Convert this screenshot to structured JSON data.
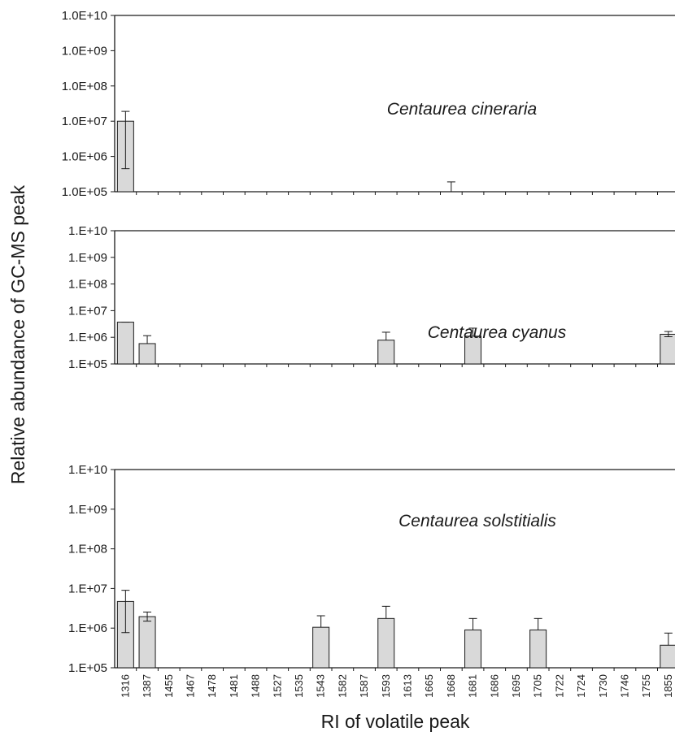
{
  "chart_data": {
    "type": "bar",
    "ylabel": "Relative abundance of GC-MS peak",
    "xlabel": "RI of volatile peak",
    "y_scale": "log",
    "grid": false,
    "categories": [
      "1316",
      "1387",
      "1455",
      "1467",
      "1478",
      "1481",
      "1488",
      "1527",
      "1535",
      "1543",
      "1582",
      "1587",
      "1593",
      "1613",
      "1665",
      "1668",
      "1681",
      "1686",
      "1695",
      "1705",
      "1722",
      "1724",
      "1730",
      "1746",
      "1755",
      "1855"
    ],
    "panels": [
      {
        "title": "Centaurea cineraria",
        "ylim": [
          100000,
          10000000000
        ],
        "ytick_values": [
          100000,
          1000000,
          10000000,
          100000000,
          1000000000,
          10000000000
        ],
        "ytick_labels": [
          "1.0E+05",
          "1.0E+06",
          "1.0E+07",
          "1.0E+08",
          "1.0E+09",
          "1.0E+10"
        ],
        "values": [
          10000000,
          null,
          null,
          null,
          null,
          null,
          null,
          null,
          null,
          null,
          null,
          null,
          null,
          null,
          null,
          null,
          null,
          null,
          null,
          null,
          null,
          null,
          null,
          null,
          null,
          null
        ],
        "err_high": [
          19000000,
          null,
          null,
          null,
          null,
          null,
          null,
          null,
          null,
          null,
          null,
          null,
          null,
          null,
          null,
          190000,
          null,
          null,
          null,
          null,
          null,
          null,
          null,
          null,
          null,
          null
        ],
        "err_low": [
          450000,
          null,
          null,
          null,
          null,
          null,
          null,
          null,
          null,
          null,
          null,
          null,
          null,
          null,
          null,
          null,
          null,
          null,
          null,
          null,
          null,
          null,
          null,
          null,
          null,
          null
        ]
      },
      {
        "title": "Centaurea cyanus",
        "ylim": [
          100000,
          10000000000
        ],
        "ytick_values": [
          100000,
          1000000,
          10000000,
          100000000,
          1000000000,
          10000000000
        ],
        "ytick_labels": [
          "1.E+05",
          "1.E+06",
          "1.E+07",
          "1.E+08",
          "1.E+09",
          "1.E+10"
        ],
        "values": [
          3700000,
          580000,
          null,
          null,
          null,
          null,
          null,
          null,
          null,
          null,
          null,
          null,
          780000,
          null,
          null,
          null,
          1100000,
          null,
          null,
          null,
          null,
          null,
          null,
          null,
          null,
          1300000
        ],
        "err_high": [
          3700000,
          1150000,
          null,
          null,
          null,
          null,
          null,
          null,
          null,
          null,
          null,
          null,
          1550000,
          null,
          null,
          null,
          2200000,
          null,
          null,
          null,
          null,
          null,
          null,
          null,
          null,
          1650000
        ],
        "err_low": [
          null,
          null,
          null,
          null,
          null,
          null,
          null,
          null,
          null,
          null,
          null,
          null,
          null,
          null,
          null,
          null,
          null,
          null,
          null,
          null,
          null,
          null,
          null,
          null,
          null,
          1050000
        ]
      },
      {
        "title": "Centaurea solstitialis",
        "ylim": [
          100000,
          10000000000
        ],
        "ytick_values": [
          100000,
          1000000,
          10000000,
          100000000,
          1000000000,
          10000000000
        ],
        "ytick_labels": [
          "1.E+05",
          "1.E+06",
          "1.E+07",
          "1.E+08",
          "1.E+09",
          "1.E+10"
        ],
        "values": [
          4700000,
          1950000,
          null,
          null,
          null,
          null,
          null,
          null,
          null,
          1050000,
          null,
          null,
          1750000,
          null,
          null,
          null,
          900000,
          null,
          null,
          900000,
          null,
          null,
          null,
          null,
          null,
          370000
        ],
        "err_high": [
          9000000,
          2550000,
          null,
          null,
          null,
          null,
          null,
          null,
          null,
          2050000,
          null,
          null,
          3550000,
          null,
          null,
          null,
          1750000,
          null,
          null,
          1750000,
          null,
          null,
          null,
          null,
          null,
          750000
        ],
        "err_low": [
          770000,
          1500000,
          null,
          null,
          null,
          null,
          null,
          null,
          null,
          null,
          null,
          null,
          null,
          null,
          null,
          null,
          null,
          null,
          null,
          null,
          null,
          null,
          null,
          null,
          null,
          null
        ]
      }
    ]
  }
}
